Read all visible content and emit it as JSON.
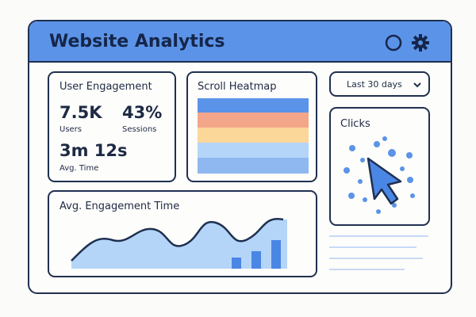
{
  "header": {
    "title": "Website Analytics"
  },
  "user_engagement": {
    "title": "User Engagement",
    "metrics": [
      {
        "value": "7.5K",
        "label": "Users"
      },
      {
        "value": "43%",
        "label": "Sessions"
      },
      {
        "value": "3m 12s",
        "label": "Avg. Time"
      }
    ]
  },
  "scroll_heatmap": {
    "title": "Scroll Heatmap"
  },
  "date_filter": {
    "label": "Last 30 days"
  },
  "clicks": {
    "title": "Clicks"
  },
  "engagement_time": {
    "title": "Avg. Engagement Time"
  }
}
